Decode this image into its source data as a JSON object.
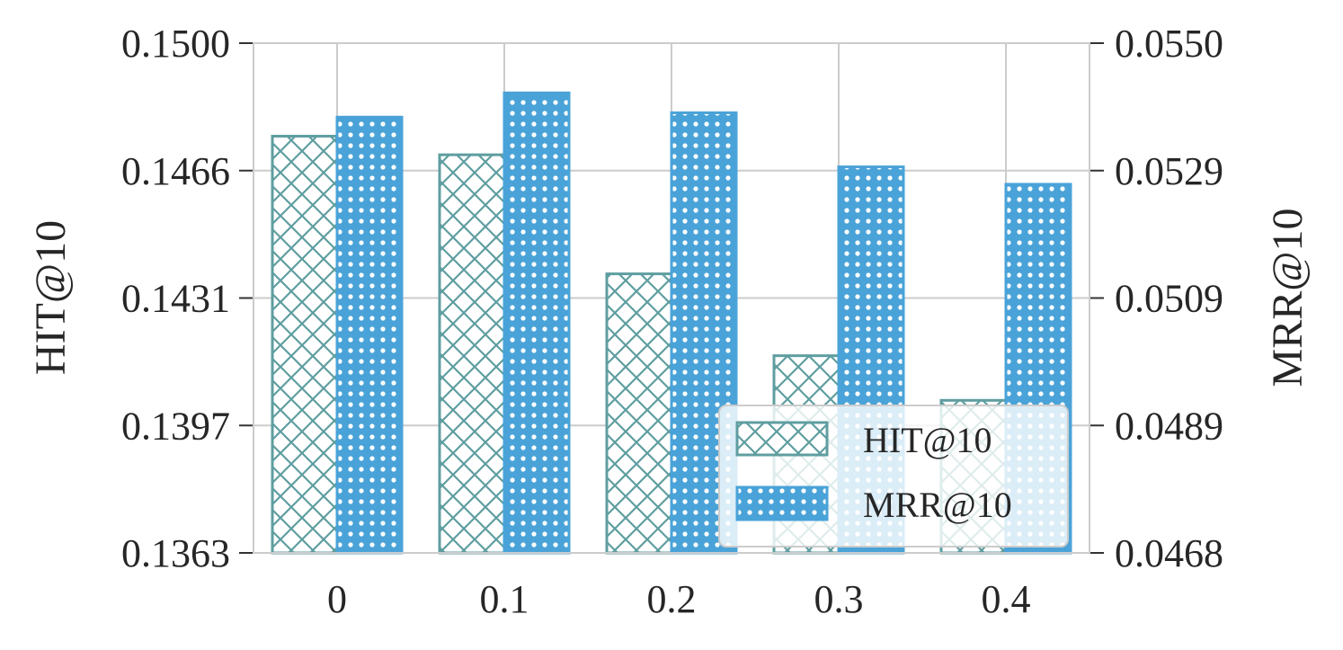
{
  "chart_data": {
    "type": "bar",
    "categories": [
      "0",
      "0.1",
      "0.2",
      "0.3",
      "0.4"
    ],
    "series": [
      {
        "name": "HIT@10",
        "axis": "left",
        "values": [
          0.1475,
          0.147,
          0.1438,
          0.1416,
          0.1404
        ]
      },
      {
        "name": "MRR@10",
        "axis": "right",
        "values": [
          0.05381,
          0.0542,
          0.05388,
          0.05301,
          0.05273
        ]
      }
    ],
    "y_left": {
      "label": "HIT@10",
      "lim": [
        0.1363,
        0.15
      ],
      "ticks": [
        "0.1363",
        "0.1397",
        "0.1431",
        "0.1466",
        "0.1500"
      ]
    },
    "y_right": {
      "label": "MRR@10",
      "lim": [
        0.0468,
        0.055
      ],
      "ticks": [
        "0.0468",
        "0.0489",
        "0.0509",
        "0.0529",
        "0.0550"
      ]
    },
    "grid": true,
    "legend_position": "lower-right"
  },
  "colors": {
    "hit": "#5f9ea0",
    "mrr": "#4aa3d8",
    "grid": "#cccccc",
    "text": "#262626"
  }
}
